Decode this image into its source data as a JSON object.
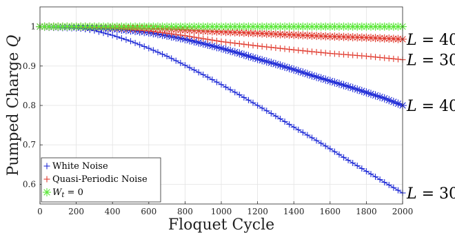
{
  "chart_data": {
    "type": "line",
    "title": "",
    "xlabel": "Floquet Cycle",
    "ylabel_text": "Pumped Charge ",
    "ylabel_symbol": "Q",
    "xlim": [
      0,
      2000
    ],
    "ylim": [
      0.55,
      1.05
    ],
    "xticks": [
      "0",
      "200",
      "400",
      "600",
      "800",
      "1000",
      "1200",
      "1400",
      "1600",
      "1800",
      "2000"
    ],
    "yticks": [
      "0.6",
      "0.7",
      "0.8",
      "0.9",
      "1"
    ],
    "grid": true,
    "legend_position": "bottom-left",
    "legend": [
      {
        "label": "White Noise",
        "color": "#1f2bd6"
      },
      {
        "label": "Quasi-Periodic Noise",
        "color": "#e03a2e"
      },
      {
        "label_var": "W",
        "label_sub": "t",
        "label_rest": " = 0",
        "color": "#5ce83a"
      }
    ],
    "series": [
      {
        "group": "White Noise",
        "L": "30",
        "color": "#1f2bd6",
        "marker": "plus",
        "x": [
          0,
          200,
          300,
          400,
          500,
          600,
          700,
          800,
          900,
          1000,
          1100,
          1200,
          1300,
          1400,
          1500,
          1600,
          1700,
          1800,
          1900,
          2000
        ],
        "y": [
          1.0,
          0.997,
          0.99,
          0.978,
          0.963,
          0.945,
          0.925,
          0.902,
          0.878,
          0.853,
          0.827,
          0.8,
          0.773,
          0.745,
          0.718,
          0.69,
          0.661,
          0.633,
          0.605,
          0.578
        ]
      },
      {
        "group": "White Noise",
        "L": "40",
        "color": "#1f2bd6",
        "marker": "star",
        "x": [
          0,
          200,
          400,
          500,
          600,
          700,
          800,
          900,
          1000,
          1100,
          1200,
          1300,
          1400,
          1500,
          1600,
          1700,
          1800,
          1900,
          2000
        ],
        "y": [
          1.0,
          0.998,
          0.994,
          0.99,
          0.985,
          0.977,
          0.968,
          0.957,
          0.945,
          0.932,
          0.918,
          0.905,
          0.891,
          0.876,
          0.862,
          0.848,
          0.833,
          0.818,
          0.8
        ]
      },
      {
        "group": "Quasi-Periodic Noise",
        "L": "30",
        "color": "#e03a2e",
        "marker": "plus",
        "x": [
          0,
          200,
          400,
          600,
          800,
          1000,
          1200,
          1400,
          1600,
          1800,
          2000
        ],
        "y": [
          1.0,
          0.999,
          0.996,
          0.989,
          0.977,
          0.962,
          0.951,
          0.941,
          0.932,
          0.925,
          0.916
        ]
      },
      {
        "group": "Quasi-Periodic Noise",
        "L": "40",
        "color": "#e03a2e",
        "marker": "star",
        "x": [
          0,
          200,
          400,
          600,
          800,
          1000,
          1200,
          1400,
          1600,
          1800,
          2000
        ],
        "y": [
          1.0,
          1.0,
          0.999,
          0.996,
          0.991,
          0.987,
          0.983,
          0.979,
          0.975,
          0.972,
          0.968
        ]
      },
      {
        "group": "W_t = 0",
        "L": "30",
        "color": "#5ce83a",
        "marker": "plus",
        "x": [
          0,
          400,
          800,
          1200,
          1600,
          2000
        ],
        "y": [
          1.0,
          1.0,
          1.0,
          1.0,
          1.0,
          1.0
        ]
      },
      {
        "group": "W_t = 0",
        "L": "40",
        "color": "#5ce83a",
        "marker": "star",
        "x": [
          0,
          400,
          800,
          1200,
          1600,
          2000
        ],
        "y": [
          1.0,
          1.0,
          1.0,
          1.0,
          1.0,
          1.0
        ]
      }
    ],
    "annotations": [
      {
        "var": "L",
        "rest": " = 40",
        "y": 0.968
      },
      {
        "var": "L",
        "rest": " = 30",
        "y": 0.916
      },
      {
        "var": "L",
        "rest": " = 40",
        "y": 0.8
      },
      {
        "var": "L",
        "rest": " = 30",
        "y": 0.578
      }
    ]
  }
}
